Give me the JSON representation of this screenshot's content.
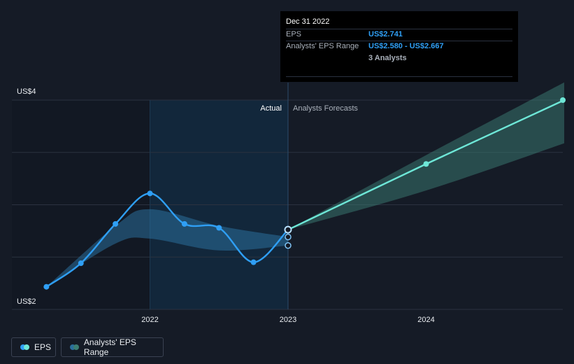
{
  "chart_data": {
    "type": "line",
    "y_axis": {
      "labels": [
        {
          "value": 4,
          "text": "US$4"
        },
        {
          "value": 2,
          "text": "US$2"
        }
      ],
      "ylim": [
        1.93,
        4.06
      ]
    },
    "x_axis": {
      "ticks": [
        "2022",
        "2023",
        "2024"
      ],
      "xlim": [
        2021.0,
        2024.99
      ]
    },
    "region_labels": {
      "actual": "Actual",
      "forecast": "Analysts Forecasts"
    },
    "divider_x": 2023.0,
    "highlight_start": 2022.0,
    "series": [
      {
        "name": "EPS",
        "color": "#2f9ff5",
        "points": [
          {
            "x": 2021.25,
            "y": 2.16
          },
          {
            "x": 2021.5,
            "y": 2.4
          },
          {
            "x": 2021.75,
            "y": 2.8
          },
          {
            "x": 2022.0,
            "y": 3.11
          },
          {
            "x": 2022.25,
            "y": 2.8
          },
          {
            "x": 2022.5,
            "y": 2.76
          },
          {
            "x": 2022.75,
            "y": 2.41
          },
          {
            "x": 2023.0,
            "y": 2.741
          }
        ]
      },
      {
        "name": "Analysts' EPS Range",
        "color": "#2a6f9c",
        "upper": [
          {
            "x": 2021.25,
            "y": 2.16
          },
          {
            "x": 2021.75,
            "y": 2.78
          },
          {
            "x": 2022.0,
            "y": 2.95
          },
          {
            "x": 2022.5,
            "y": 2.78
          },
          {
            "x": 2023.0,
            "y": 2.667
          }
        ],
        "lower": [
          {
            "x": 2021.25,
            "y": 2.16
          },
          {
            "x": 2021.75,
            "y": 2.6
          },
          {
            "x": 2022.0,
            "y": 2.65
          },
          {
            "x": 2022.5,
            "y": 2.53
          },
          {
            "x": 2023.0,
            "y": 2.58
          }
        ]
      },
      {
        "name": "EPS forecast",
        "color": "#6ee7d7",
        "points": [
          {
            "x": 2023.0,
            "y": 2.741
          },
          {
            "x": 2024.0,
            "y": 3.41
          },
          {
            "x": 2025.0,
            "y": 4.06
          }
        ]
      },
      {
        "name": "Forecast range",
        "color": "#3b7e73",
        "upper": [
          {
            "x": 2023.0,
            "y": 2.741
          },
          {
            "x": 2024.0,
            "y": 3.5
          },
          {
            "x": 2025.0,
            "y": 4.24
          }
        ],
        "lower": [
          {
            "x": 2023.0,
            "y": 2.741
          },
          {
            "x": 2024.0,
            "y": 3.14
          },
          {
            "x": 2025.0,
            "y": 3.62
          }
        ]
      }
    ],
    "extra_points": [
      {
        "x": 2023.0,
        "y": 2.667
      },
      {
        "x": 2023.0,
        "y": 2.58
      }
    ],
    "grid": true
  },
  "tooltip": {
    "date": "Dec 31 2022",
    "eps_label": "EPS",
    "eps_value": "US$2.741",
    "range_label": "Analysts' EPS Range",
    "range_value": "US$2.580 - US$2.667",
    "analysts": "3 Analysts"
  },
  "legend": {
    "eps": "EPS",
    "range": "Analysts' EPS Range"
  },
  "colors": {
    "background": "#151b26",
    "eps": "#2f9ff5",
    "forecast": "#6ee7d7",
    "range": "#2a6f9c"
  }
}
